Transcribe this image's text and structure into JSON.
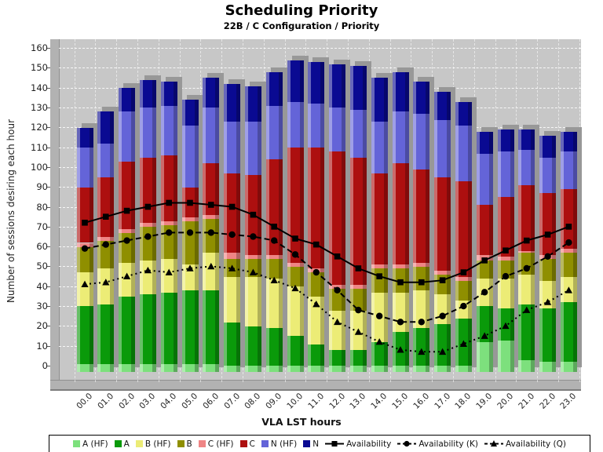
{
  "title": "Scheduling Priority",
  "subtitle": "22B / C Configuration /  Priority",
  "colors": {
    "plot_bg": "#c7c7c7",
    "wall": "#b2b2b2",
    "shadow_3d": "#989898",
    "grid": "#ffffff",
    "line_color": "#000000"
  },
  "chart_data": {
    "type": "bar",
    "stacked": true,
    "grid": true,
    "legend_position": "bottom",
    "title": "Scheduling Priority",
    "subtitle": "22B / C Configuration /  Priority",
    "xlabel": "VLA LST hours",
    "ylabel": "Number of sessions desiring each hour",
    "ylim": [
      0,
      160
    ],
    "ytick_step": 10,
    "categories": [
      "00.0",
      "01.0",
      "02.0",
      "03.0",
      "04.0",
      "05.0",
      "06.0",
      "07.0",
      "08.0",
      "09.0",
      "10.0",
      "11.0",
      "12.0",
      "13.0",
      "14.0",
      "15.0",
      "16.0",
      "17.0",
      "18.0",
      "19.0",
      "20.0",
      "21.0",
      "22.0",
      "23.0"
    ],
    "bar_series": [
      {
        "name": "A (HF)",
        "color": "#7de07d",
        "values": [
          4,
          4,
          4,
          4,
          4,
          4,
          4,
          3,
          3,
          3,
          3,
          3,
          3,
          3,
          3,
          3,
          3,
          3,
          3,
          15,
          16,
          6,
          5,
          5
        ]
      },
      {
        "name": "A",
        "color": "#0a9a0a",
        "values": [
          29,
          30,
          34,
          35,
          36,
          37,
          37,
          22,
          20,
          19,
          15,
          11,
          8,
          8,
          12,
          17,
          19,
          21,
          24,
          18,
          16,
          28,
          27,
          30
        ]
      },
      {
        "name": "B (HF)",
        "color": "#ecec76",
        "values": [
          17,
          18,
          17,
          17,
          17,
          13,
          19,
          23,
          25,
          25,
          25,
          24,
          20,
          20,
          25,
          20,
          19,
          15,
          9,
          14,
          15,
          15,
          14,
          13
        ]
      },
      {
        "name": "B",
        "color": "#8f8f00",
        "values": [
          13,
          14,
          15,
          17,
          17,
          22,
          17,
          9,
          9,
          10,
          10,
          12,
          11,
          11,
          12,
          12,
          12,
          10,
          10,
          9,
          9,
          11,
          11,
          12
        ]
      },
      {
        "name": "C (HF)",
        "color": "#ef8585",
        "values": [
          2,
          2,
          2,
          2,
          2,
          2,
          2,
          3,
          2,
          2,
          2,
          2,
          2,
          2,
          2,
          2,
          2,
          2,
          2,
          3,
          2,
          1,
          2,
          2
        ]
      },
      {
        "name": "C",
        "color": "#ad0f0f",
        "values": [
          28,
          30,
          34,
          33,
          33,
          15,
          26,
          40,
          40,
          48,
          58,
          61,
          67,
          64,
          46,
          51,
          47,
          47,
          48,
          25,
          30,
          33,
          31,
          30
        ]
      },
      {
        "name": "N (HF)",
        "color": "#6464d8",
        "values": [
          20,
          17,
          25,
          25,
          25,
          31,
          28,
          26,
          27,
          27,
          23,
          22,
          22,
          24,
          26,
          26,
          28,
          29,
          28,
          26,
          23,
          18,
          18,
          19
        ]
      },
      {
        "name": "N",
        "color": "#0a0a92",
        "values": [
          10,
          16,
          12,
          14,
          12,
          13,
          15,
          19,
          18,
          17,
          21,
          21,
          22,
          22,
          22,
          20,
          16,
          14,
          12,
          11,
          11,
          10,
          11,
          10
        ]
      }
    ],
    "line_series": [
      {
        "name": "Availability",
        "marker": "square",
        "dash": "solid",
        "values": [
          72,
          75,
          78,
          80,
          82,
          82,
          81,
          80,
          76,
          70,
          64,
          61,
          55,
          49,
          45,
          42,
          42,
          43,
          47,
          53,
          58,
          63,
          66,
          70
        ]
      },
      {
        "name": "Availability (K)",
        "marker": "circle",
        "dash": "dashed",
        "values": [
          59,
          61,
          63,
          65,
          67,
          67,
          67,
          66,
          65,
          63,
          56,
          47,
          38,
          28,
          25,
          22,
          22,
          25,
          30,
          37,
          45,
          49,
          55,
          62
        ]
      },
      {
        "name": "Availability (Q)",
        "marker": "triangle",
        "dash": "dotted",
        "values": [
          41,
          42,
          45,
          48,
          47,
          49,
          50,
          49,
          47,
          43,
          39,
          31,
          22,
          17,
          12,
          8,
          7,
          7,
          11,
          15,
          20,
          28,
          32,
          38
        ]
      }
    ]
  }
}
